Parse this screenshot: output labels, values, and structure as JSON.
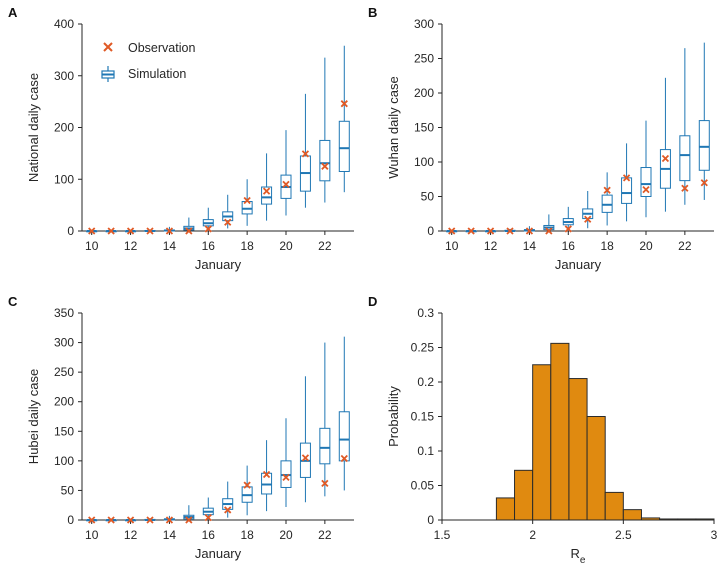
{
  "colors": {
    "box": "#1f77b4",
    "observation": "#e05a26",
    "bar_fill": "#e08a10",
    "bar_edge": "#2b2b2b",
    "axis": "#262626"
  },
  "legend": {
    "observation": "Observation",
    "simulation": "Simulation"
  },
  "chart_data": [
    {
      "panel": "A",
      "type": "box",
      "xlabel": "January",
      "ylabel": "National daily case",
      "xlim": [
        9.5,
        23.5
      ],
      "ylim": [
        0,
        400
      ],
      "xticks": [
        10,
        12,
        14,
        16,
        18,
        20,
        22
      ],
      "yticks": [
        0,
        100,
        200,
        300,
        400
      ],
      "legend": "top-left",
      "days": [
        10,
        11,
        12,
        13,
        14,
        15,
        16,
        17,
        18,
        19,
        20,
        21,
        22,
        23
      ],
      "whisker_low": [
        0,
        0,
        0,
        0,
        0,
        0,
        0,
        5,
        10,
        20,
        30,
        45,
        55,
        75
      ],
      "q1": [
        0,
        0,
        0,
        0,
        0,
        2,
        10,
        20,
        33,
        52,
        63,
        77,
        97,
        115
      ],
      "median": [
        0,
        0,
        0,
        0,
        1,
        5,
        15,
        28,
        43,
        65,
        85,
        112,
        131,
        160
      ],
      "q3": [
        0,
        0,
        0,
        1,
        2,
        9,
        22,
        37,
        57,
        85,
        108,
        145,
        175,
        212
      ],
      "whisker_high": [
        1,
        1,
        2,
        3,
        8,
        26,
        45,
        70,
        100,
        150,
        195,
        265,
        335,
        358
      ],
      "observation": [
        0,
        0,
        0,
        0,
        0,
        0,
        4,
        17,
        59,
        77,
        90,
        149,
        125,
        246
      ]
    },
    {
      "panel": "B",
      "type": "box",
      "xlabel": "January",
      "ylabel": "Wuhan daily case",
      "xlim": [
        9.5,
        23.5
      ],
      "ylim": [
        0,
        300
      ],
      "xticks": [
        10,
        12,
        14,
        16,
        18,
        20,
        22
      ],
      "yticks": [
        0,
        50,
        100,
        150,
        200,
        250,
        300
      ],
      "days": [
        10,
        11,
        12,
        13,
        14,
        15,
        16,
        17,
        18,
        19,
        20,
        21,
        22,
        23
      ],
      "whisker_low": [
        0,
        0,
        0,
        0,
        0,
        0,
        0,
        4,
        8,
        14,
        20,
        28,
        38,
        45
      ],
      "q1": [
        0,
        0,
        0,
        0,
        0,
        2,
        9,
        18,
        27,
        40,
        50,
        62,
        73,
        88
      ],
      "median": [
        0,
        0,
        0,
        0,
        1,
        5,
        13,
        25,
        38,
        55,
        68,
        90,
        110,
        122
      ],
      "q3": [
        0,
        0,
        0,
        1,
        2,
        8,
        18,
        32,
        52,
        77,
        92,
        118,
        138,
        160
      ],
      "whisker_high": [
        1,
        1,
        2,
        3,
        7,
        24,
        35,
        58,
        85,
        127,
        160,
        222,
        265,
        273
      ],
      "observation": [
        0,
        0,
        0,
        0,
        0,
        0,
        3,
        17,
        59,
        77,
        60,
        105,
        62,
        70
      ]
    },
    {
      "panel": "C",
      "type": "box",
      "xlabel": "January",
      "ylabel": "Hubei daily case",
      "xlim": [
        9.5,
        23.5
      ],
      "ylim": [
        0,
        350
      ],
      "xticks": [
        10,
        12,
        14,
        16,
        18,
        20,
        22
      ],
      "yticks": [
        0,
        50,
        100,
        150,
        200,
        250,
        300,
        350
      ],
      "days": [
        10,
        11,
        12,
        13,
        14,
        15,
        16,
        17,
        18,
        19,
        20,
        21,
        22,
        23
      ],
      "whisker_low": [
        0,
        0,
        0,
        0,
        0,
        0,
        0,
        4,
        8,
        15,
        22,
        30,
        40,
        50
      ],
      "q1": [
        0,
        0,
        0,
        0,
        0,
        2,
        9,
        18,
        30,
        44,
        55,
        72,
        95,
        100
      ],
      "median": [
        0,
        0,
        0,
        0,
        1,
        5,
        14,
        27,
        42,
        60,
        76,
        100,
        122,
        136
      ],
      "q3": [
        0,
        0,
        0,
        1,
        2,
        8,
        20,
        36,
        56,
        79,
        100,
        130,
        155,
        183
      ],
      "whisker_high": [
        1,
        1,
        2,
        3,
        7,
        25,
        38,
        65,
        92,
        135,
        172,
        243,
        300,
        310
      ],
      "observation": [
        0,
        0,
        0,
        0,
        0,
        0,
        4,
        17,
        59,
        77,
        72,
        105,
        62,
        104
      ]
    },
    {
      "panel": "D",
      "type": "bar",
      "xlabel": "R",
      "xlabel_sub": "e",
      "ylabel": "Probability",
      "xlim": [
        1.5,
        3
      ],
      "ylim": [
        0,
        0.3
      ],
      "xticks": [
        1.5,
        2,
        2.5,
        3
      ],
      "xtick_labels": [
        "1.5",
        "2",
        "2.5",
        "3"
      ],
      "yticks": [
        0,
        0.05,
        0.1,
        0.15,
        0.2,
        0.25,
        0.3
      ],
      "ytick_labels": [
        "0",
        "0.05",
        "0.1",
        "0.15",
        "0.2",
        "0.25",
        "0.3"
      ],
      "bin_width": 0.1,
      "x": [
        1.85,
        1.95,
        2.05,
        2.15,
        2.25,
        2.35,
        2.45,
        2.55,
        2.65,
        2.75,
        2.85,
        2.95
      ],
      "values": [
        0.032,
        0.072,
        0.225,
        0.256,
        0.205,
        0.15,
        0.04,
        0.015,
        0.003,
        0.0015,
        0.0015,
        0.0015
      ]
    }
  ]
}
